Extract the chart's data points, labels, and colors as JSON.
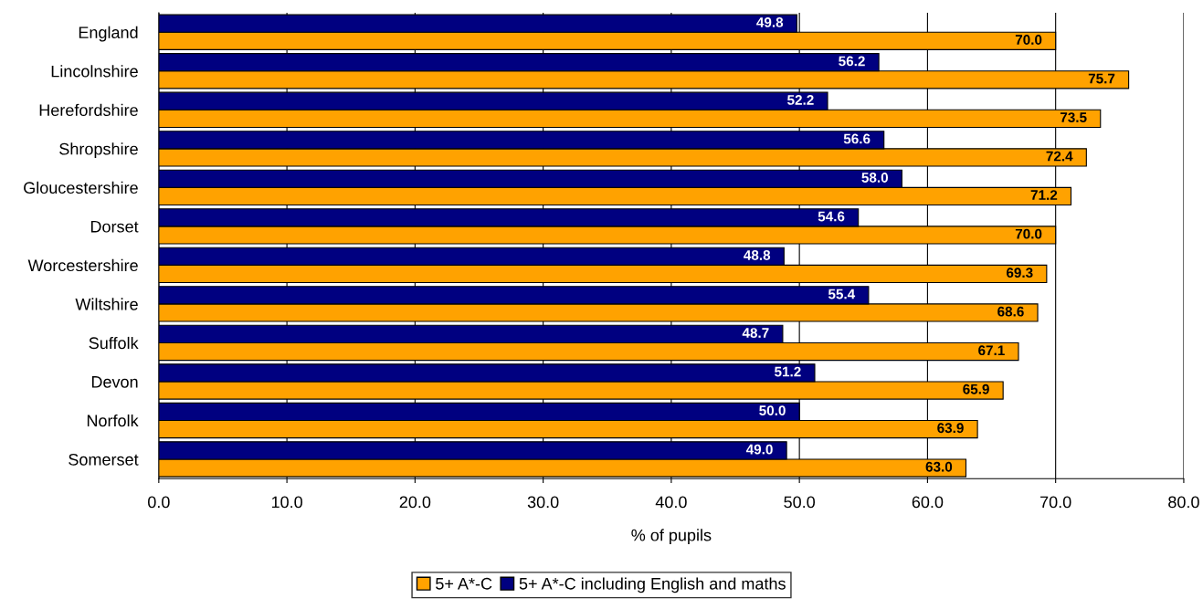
{
  "chart_data": {
    "type": "bar",
    "orientation": "horizontal",
    "xlabel": "% of pupils",
    "categories": [
      "England",
      "Lincolnshire",
      "Herefordshire",
      "Shropshire",
      "Gloucestershire",
      "Dorset",
      "Worcestershire",
      "Wiltshire",
      "Suffolk",
      "Devon",
      "Norfolk",
      "Somerset"
    ],
    "series": [
      {
        "name": "5+ A*-C",
        "color": "#ffa200",
        "values": [
          70.0,
          75.7,
          73.5,
          72.4,
          71.2,
          70.0,
          69.3,
          68.6,
          67.1,
          65.9,
          63.9,
          63.0
        ],
        "value_labels": [
          "70.0",
          "75.7",
          "73.5",
          "72.4",
          "71.2",
          "70.0",
          "69.3",
          "68.6",
          "67.1",
          "65.9",
          "63.9",
          "63.0"
        ]
      },
      {
        "name": "5+ A*-C including English and maths",
        "color": "#000080",
        "values": [
          49.8,
          56.2,
          52.2,
          56.6,
          58.0,
          54.6,
          48.8,
          55.4,
          48.7,
          51.2,
          50.0,
          49.0
        ],
        "value_labels": [
          "49.8",
          "56.2",
          "52.2",
          "56.6",
          "58.0",
          "54.6",
          "48.8",
          "55.4",
          "48.7",
          "51.2",
          "50.0",
          "49.0"
        ]
      }
    ],
    "xlim": [
      0,
      80
    ],
    "xticks": [
      {
        "value": 0,
        "label": "0.0"
      },
      {
        "value": 10,
        "label": "10.0"
      },
      {
        "value": 20,
        "label": "20.0"
      },
      {
        "value": 30,
        "label": "30.0"
      },
      {
        "value": 40,
        "label": "40.0"
      },
      {
        "value": 50,
        "label": "50.0"
      },
      {
        "value": 60,
        "label": "60.0"
      },
      {
        "value": 70,
        "label": "70.0"
      },
      {
        "value": 80,
        "label": "80.0"
      }
    ],
    "grid": "x",
    "legend": "bottom"
  }
}
